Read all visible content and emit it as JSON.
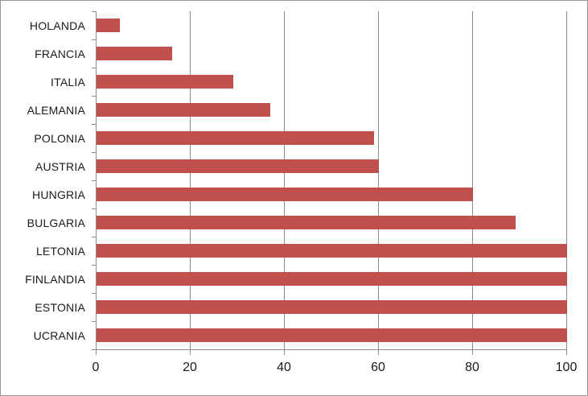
{
  "chart_data": {
    "type": "bar",
    "orientation": "horizontal",
    "title": "",
    "xlabel": "",
    "ylabel": "",
    "categories": [
      "HOLANDA",
      "FRANCIA",
      "ITALIA",
      "ALEMANIA",
      "POLONIA",
      "AUSTRIA",
      "HUNGRIA",
      "BULGARIA",
      "LETONIA",
      "FINLANDIA",
      "ESTONIA",
      "UCRANIA"
    ],
    "values": [
      5,
      16,
      29,
      37,
      59,
      60,
      80,
      89,
      100,
      100,
      100,
      100
    ],
    "xlim": [
      0,
      100
    ],
    "xticks": [
      0,
      20,
      40,
      60,
      80,
      100
    ],
    "grid": true,
    "legend": false
  },
  "colors": {
    "bar": "#C0504D",
    "gridline": "#8C8C8C",
    "axis": "#8C8C8C",
    "text": "#1A1A1A",
    "border": "#969696",
    "background": "#FFFFFF"
  }
}
